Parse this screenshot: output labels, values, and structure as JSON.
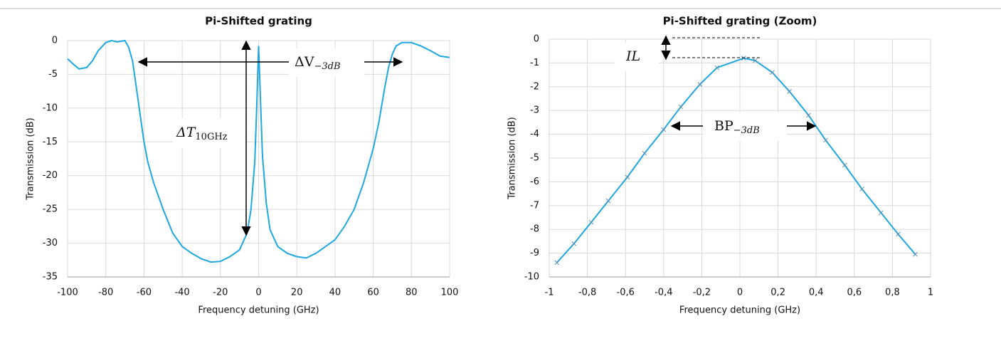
{
  "chart_data": [
    {
      "type": "line",
      "title": "Pi-Shifted grating",
      "x_label": "Frequency detuning (GHz)",
      "y_label": "Transmission (dB)",
      "xlim": [
        -100,
        100
      ],
      "xticks": [
        -100,
        -80,
        -60,
        -40,
        -20,
        0,
        20,
        40,
        60,
        80,
        100
      ],
      "ylim": [
        -35,
        0
      ],
      "yticks": [
        0,
        -5,
        -10,
        -15,
        -20,
        -25,
        -30,
        -35
      ],
      "grid": true,
      "color": "#1fa8e0",
      "markers": false,
      "x": [
        -100,
        -97,
        -94,
        -90,
        -87,
        -84,
        -80,
        -77,
        -74,
        -70,
        -68,
        -66,
        -64,
        -62,
        -60,
        -58,
        -55,
        -50,
        -45,
        -40,
        -35,
        -30,
        -25,
        -20,
        -15,
        -10,
        -6,
        -4,
        -2,
        -1,
        0,
        1,
        2,
        4,
        6,
        10,
        15,
        20,
        25,
        30,
        35,
        40,
        45,
        50,
        55,
        60,
        63,
        66,
        68,
        70,
        72,
        75,
        80,
        85,
        90,
        95,
        100
      ],
      "values": [
        -2.7,
        -3.5,
        -4.2,
        -4,
        -3,
        -1.5,
        -0.3,
        0,
        -0.2,
        0,
        -1,
        -3,
        -7,
        -11,
        -15,
        -18,
        -21,
        -25,
        -28.5,
        -30.5,
        -31.5,
        -32.3,
        -32.8,
        -32.7,
        -32,
        -31,
        -28.5,
        -25,
        -18,
        -10,
        -0.8,
        -9,
        -17,
        -24,
        -28,
        -30.5,
        -31.5,
        -32,
        -32.2,
        -31.5,
        -30.5,
        -29.5,
        -27.5,
        -25,
        -21,
        -16,
        -12,
        -7,
        -4,
        -2,
        -0.8,
        -0.3,
        -0.3,
        -0.8,
        -1.5,
        -2.3,
        -2.5
      ],
      "annotations": [
        {
          "text": "ΔV",
          "subscript": "−3dB"
        },
        {
          "text": "ΔT",
          "subscript": "10GHz"
        }
      ]
    },
    {
      "type": "line",
      "title": "Pi-Shifted grating (Zoom)",
      "x_label": "Frequency detuning (GHz)",
      "y_label": "Transmission (dB)",
      "xlim": [
        -1,
        1
      ],
      "xticks": [
        -1,
        {
          "value": -0.8,
          "label": "-0,8"
        },
        {
          "value": -0.6,
          "label": "-0,6"
        },
        {
          "value": -0.4,
          "label": "-0,4"
        },
        {
          "value": -0.2,
          "label": "-0,2"
        },
        0,
        {
          "value": 0.2,
          "label": "0,2"
        },
        {
          "value": 0.4,
          "label": "0,4"
        },
        {
          "value": 0.6,
          "label": "0,6"
        },
        {
          "value": 0.8,
          "label": "0,8"
        },
        1
      ],
      "ylim": [
        -10,
        0
      ],
      "yticks": [
        0,
        -1,
        -2,
        -3,
        -4,
        -5,
        -6,
        -7,
        -8,
        -9,
        -10
      ],
      "grid": true,
      "color": "#1fa8e0",
      "markers": true,
      "x": [
        -0.96,
        -0.87,
        -0.78,
        -0.69,
        -0.59,
        -0.5,
        -0.4,
        -0.31,
        -0.21,
        -0.12,
        0.02,
        0.08,
        0.17,
        0.26,
        0.36,
        0.45,
        0.55,
        0.64,
        0.74,
        0.83,
        0.92
      ],
      "values": [
        -9.4,
        -8.6,
        -7.7,
        -6.8,
        -5.8,
        -4.8,
        -3.8,
        -2.85,
        -1.9,
        -1.2,
        -0.8,
        -0.9,
        -1.4,
        -2.2,
        -3.2,
        -4.25,
        -5.3,
        -6.3,
        -7.3,
        -8.2,
        -9.05
      ],
      "annotations": [
        {
          "text": "IL"
        },
        {
          "text": "BP",
          "subscript": "−3dB"
        }
      ]
    }
  ]
}
